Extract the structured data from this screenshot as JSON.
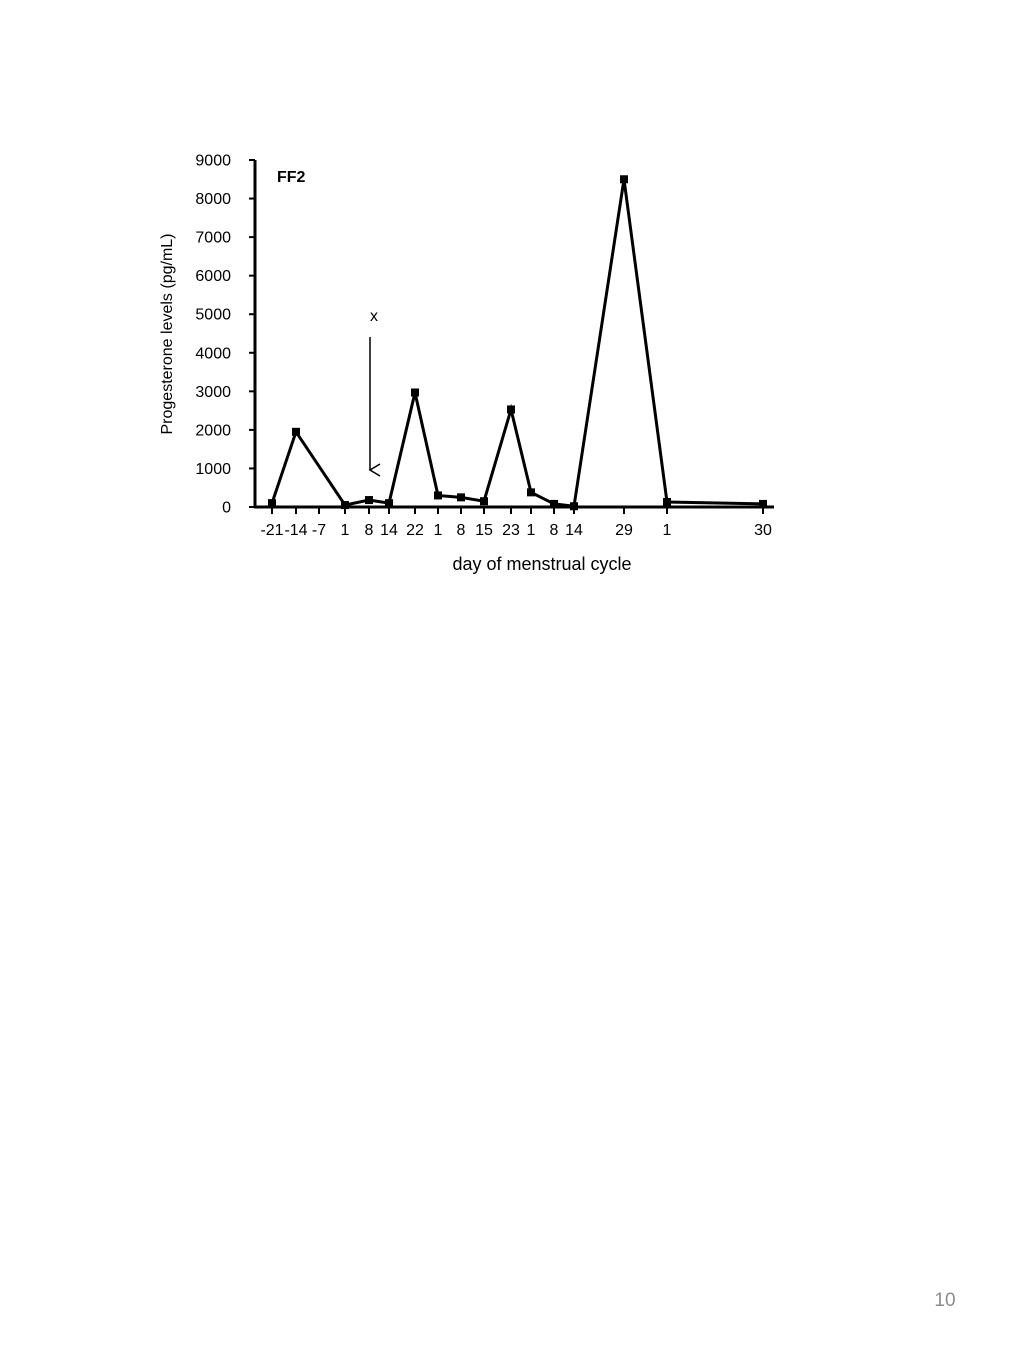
{
  "page": {
    "page_number": "10"
  },
  "chart_data": {
    "type": "line",
    "title": "FF2",
    "xlabel": "day of menstrual cycle",
    "ylabel": "Progesterone levels (pg/mL)",
    "ylim": [
      0,
      9000
    ],
    "y_ticks": [
      "0",
      "1000",
      "2000",
      "3000",
      "4000",
      "5000",
      "6000",
      "7000",
      "8000",
      "9000"
    ],
    "x_tick_labels": [
      "-21",
      "-14",
      "-7",
      "1",
      "8",
      "14",
      "22",
      "1",
      "8",
      "15",
      "23",
      "1",
      "8",
      "14",
      "29",
      "1",
      "30"
    ],
    "grid": false,
    "legend": "none",
    "line_color": "#000000",
    "series": [
      {
        "x": [
          "-21",
          "-14",
          "1",
          "8",
          "14",
          "22",
          "1",
          "8",
          "15",
          "23",
          "1",
          "8",
          "14",
          "29",
          "1",
          "30"
        ],
        "values": [
          100,
          1950,
          50,
          180,
          100,
          2970,
          300,
          250,
          150,
          2530,
          380,
          80,
          20,
          8500,
          130,
          80
        ]
      }
    ],
    "annotations": [
      {
        "text": "x",
        "type": "downward-arrow",
        "at_x_label": "8"
      }
    ]
  }
}
